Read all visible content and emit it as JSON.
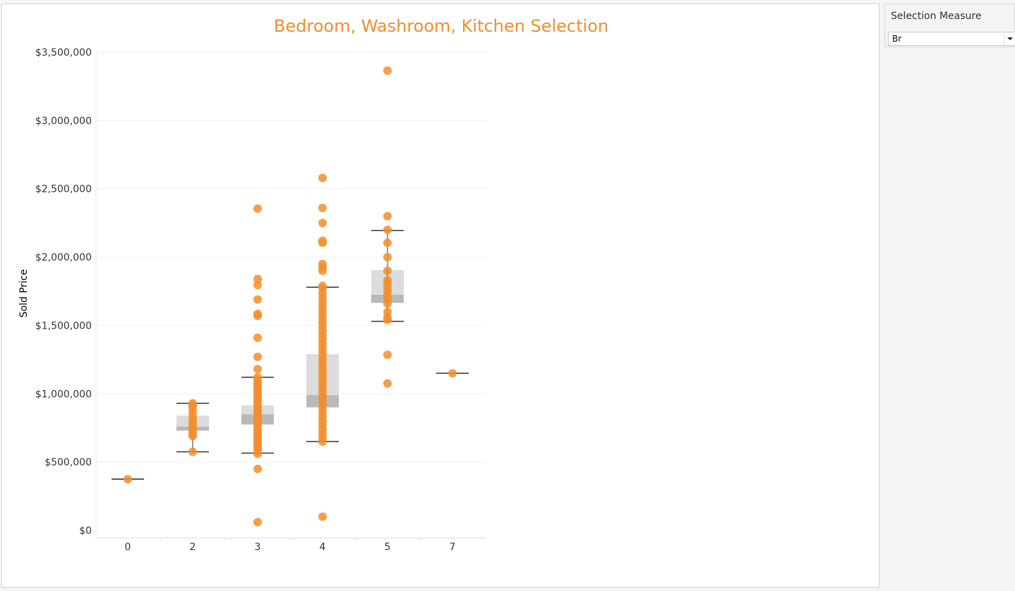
{
  "viz": {
    "title": "Bedroom, Washroom, Kitchen Selection"
  },
  "parameter": {
    "title": "Selection Measure",
    "value": "Br"
  },
  "colors": {
    "marks": "#f28e2b",
    "title": "#f28e2b",
    "box_upper": "#dcdcdc",
    "box_lower": "#b9b9b9",
    "whisker": "#333333",
    "grid": "#f0f0f0"
  },
  "chart_data": {
    "type": "scatter",
    "subtype": "box-and-whisker with jittered points",
    "title": "Bedroom, Washroom, Kitchen Selection",
    "xlabel": "",
    "ylabel": "Sold Price",
    "categories": [
      "0",
      "2",
      "3",
      "4",
      "5",
      "7"
    ],
    "ylim": [
      0,
      3500000
    ],
    "y_ticks": [
      0,
      500000,
      1000000,
      1500000,
      2000000,
      2500000,
      3000000,
      3500000
    ],
    "y_tick_labels": [
      "$0",
      "$500,000",
      "$1,000,000",
      "$1,500,000",
      "$2,000,000",
      "$2,500,000",
      "$3,000,000",
      "$3,500,000"
    ],
    "grid": true,
    "boxes": [
      {
        "category": "0",
        "whisker_low": 375000,
        "q1": 375000,
        "median": 375000,
        "q3": 375000,
        "whisker_high": 375000
      },
      {
        "category": "2",
        "whisker_low": 575000,
        "q1": 730000,
        "median": 760000,
        "q3": 840000,
        "whisker_high": 930000
      },
      {
        "category": "3",
        "whisker_low": 565000,
        "q1": 775000,
        "median": 850000,
        "q3": 915000,
        "whisker_high": 1120000
      },
      {
        "category": "4",
        "whisker_low": 650000,
        "q1": 900000,
        "median": 990000,
        "q3": 1290000,
        "whisker_high": 1780000
      },
      {
        "category": "5",
        "whisker_low": 1530000,
        "q1": 1665000,
        "median": 1725000,
        "q3": 1905000,
        "whisker_high": 2195000
      },
      {
        "category": "7",
        "whisker_low": 1150000,
        "q1": 1150000,
        "median": 1150000,
        "q3": 1150000,
        "whisker_high": 1150000
      }
    ],
    "points": [
      {
        "category": "0",
        "values": [
          375000
        ]
      },
      {
        "category": "2",
        "values": [
          575000,
          690000,
          710000,
          730000,
          750000,
          770000,
          790000,
          810000,
          840000,
          870000,
          900000,
          920000,
          930000
        ]
      },
      {
        "category": "3",
        "values": [
          60000,
          450000,
          560000,
          580000,
          600000,
          620000,
          640000,
          660000,
          680000,
          700000,
          720000,
          740000,
          760000,
          780000,
          800000,
          820000,
          840000,
          860000,
          880000,
          900000,
          920000,
          940000,
          960000,
          980000,
          1000000,
          1020000,
          1040000,
          1060000,
          1080000,
          1100000,
          1120000,
          1180000,
          1270000,
          1410000,
          1570000,
          1585000,
          1690000,
          1795000,
          1840000,
          2355000
        ]
      },
      {
        "category": "4",
        "values": [
          100000,
          650000,
          680000,
          710000,
          740000,
          770000,
          800000,
          830000,
          860000,
          890000,
          920000,
          950000,
          980000,
          1010000,
          1040000,
          1070000,
          1100000,
          1130000,
          1160000,
          1190000,
          1220000,
          1250000,
          1280000,
          1310000,
          1340000,
          1370000,
          1400000,
          1430000,
          1460000,
          1490000,
          1520000,
          1550000,
          1580000,
          1610000,
          1640000,
          1670000,
          1700000,
          1735000,
          1770000,
          1790000,
          1900000,
          1925000,
          1950000,
          2105000,
          2120000,
          2250000,
          2360000,
          2580000
        ]
      },
      {
        "category": "5",
        "values": [
          1075000,
          1285000,
          1540000,
          1560000,
          1600000,
          1660000,
          1690000,
          1720000,
          1750000,
          1780000,
          1810000,
          1830000,
          1900000,
          2000000,
          2105000,
          2200000,
          2300000,
          3365000
        ]
      },
      {
        "category": "7",
        "values": [
          1150000
        ]
      }
    ]
  }
}
